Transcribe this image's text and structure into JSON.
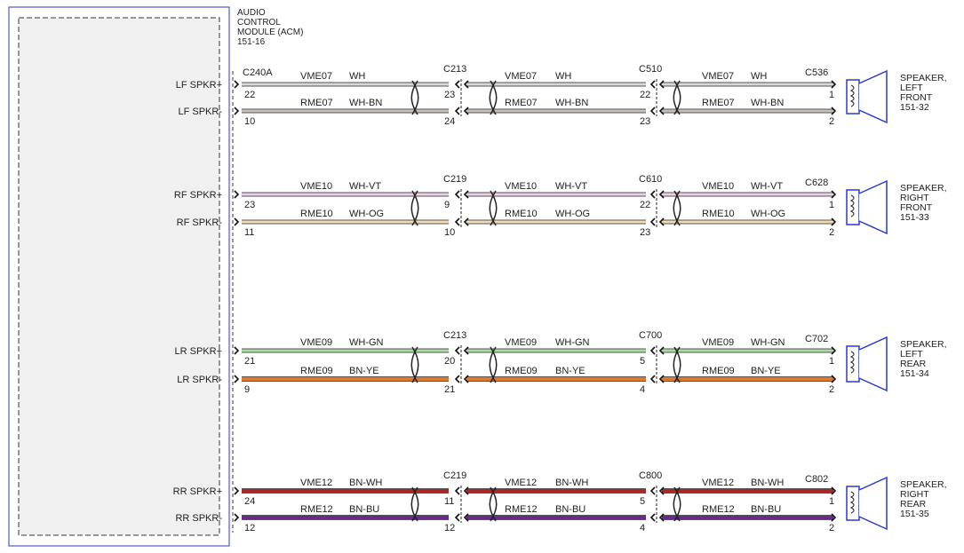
{
  "module": {
    "label_lines": [
      "AUDIO",
      "CONTROL",
      "MODULE (ACM)",
      "151-16"
    ]
  },
  "channels": [
    {
      "terminals": [
        "LF SPKR+",
        "LF SPKR-"
      ],
      "connectors": [
        {
          "name": "C240A",
          "pins": [
            22,
            10
          ]
        },
        {
          "name": "C213",
          "pins": [
            23,
            24
          ]
        },
        {
          "name": "C510",
          "pins": [
            22,
            23
          ]
        },
        {
          "name": "C536",
          "pins": [
            1,
            2
          ]
        }
      ],
      "segments": [
        {
          "circuits": [
            "VME07",
            "RME07"
          ],
          "colors": [
            "WH",
            "WH-BN"
          ]
        },
        {
          "circuits": [
            "VME07",
            "RME07"
          ],
          "colors": [
            "WH",
            "WH-BN"
          ]
        },
        {
          "circuits": [
            "VME07",
            "RME07"
          ],
          "colors": [
            "WH",
            "WH-BN"
          ]
        }
      ],
      "strokes": [
        "#d8d8d8",
        "#c8c0b8"
      ],
      "speaker": [
        "SPEAKER,",
        "LEFT",
        "FRONT",
        "151-32"
      ]
    },
    {
      "terminals": [
        "RF SPKR+",
        "RF SPKR-"
      ],
      "connectors": [
        {
          "name": "C219",
          "pins": [
            9,
            10
          ]
        },
        {
          "name": "C610",
          "pins": [
            22,
            23
          ]
        },
        {
          "name": "C628",
          "pins": [
            1,
            2
          ]
        }
      ],
      "first_pins": [
        23,
        11
      ],
      "segments": [
        {
          "circuits": [
            "VME10",
            "RME10"
          ],
          "colors": [
            "WH-VT",
            "WH-OG"
          ]
        },
        {
          "circuits": [
            "VME10",
            "RME10"
          ],
          "colors": [
            "WH-VT",
            "WH-OG"
          ]
        },
        {
          "circuits": [
            "VME10",
            "RME10"
          ],
          "colors": [
            "WH-VT",
            "WH-OG"
          ]
        }
      ],
      "strokes": [
        "#ecd0ec",
        "#f2dcb4"
      ],
      "speaker": [
        "SPEAKER,",
        "RIGHT",
        "FRONT",
        "151-33"
      ]
    },
    {
      "terminals": [
        "LR SPKR+",
        "LR SPKR-"
      ],
      "connectors": [
        {
          "name": "C213",
          "pins": [
            20,
            21
          ]
        },
        {
          "name": "C700",
          "pins": [
            5,
            4
          ]
        },
        {
          "name": "C702",
          "pins": [
            1,
            2
          ]
        }
      ],
      "first_pins": [
        21,
        9
      ],
      "segments": [
        {
          "circuits": [
            "VME09",
            "RME09"
          ],
          "colors": [
            "WH-GN",
            "BN-YE"
          ]
        },
        {
          "circuits": [
            "VME09",
            "RME09"
          ],
          "colors": [
            "WH-GN",
            "BN-YE"
          ]
        },
        {
          "circuits": [
            "VME09",
            "RME09"
          ],
          "colors": [
            "WH-GN",
            "BN-YE"
          ]
        }
      ],
      "strokes": [
        "#a8dca0",
        "#e07a28"
      ],
      "speaker": [
        "SPEAKER,",
        "LEFT",
        "REAR",
        "151-34"
      ]
    },
    {
      "terminals": [
        "RR SPKR+",
        "RR SPKR-"
      ],
      "connectors": [
        {
          "name": "C219",
          "pins": [
            11,
            12
          ]
        },
        {
          "name": "C800",
          "pins": [
            5,
            4
          ]
        },
        {
          "name": "C802",
          "pins": [
            1,
            2
          ]
        }
      ],
      "first_pins": [
        24,
        12
      ],
      "segments": [
        {
          "circuits": [
            "VME12",
            "RME12"
          ],
          "colors": [
            "BN-WH",
            "BN-BU"
          ]
        },
        {
          "circuits": [
            "VME12",
            "RME12"
          ],
          "colors": [
            "BN-WH",
            "BN-BU"
          ]
        },
        {
          "circuits": [
            "VME12",
            "RME12"
          ],
          "colors": [
            "BN-WH",
            "BN-BU"
          ]
        }
      ],
      "strokes": [
        "#a82828",
        "#6a2a8a"
      ],
      "speaker": [
        "SPEAKER,",
        "RIGHT",
        "REAR",
        "151-35"
      ]
    }
  ]
}
